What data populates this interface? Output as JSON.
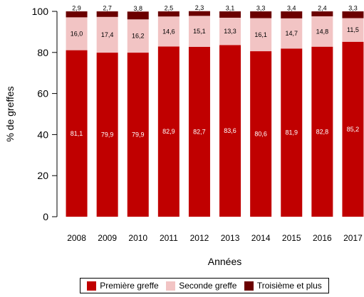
{
  "chart_data": {
    "type": "bar",
    "stacked": true,
    "title": "",
    "xlabel": "Années",
    "ylabel": "% de greffes",
    "ylim": [
      0,
      100
    ],
    "yticks": [
      "0",
      "20",
      "40",
      "60",
      "80",
      "100"
    ],
    "categories": [
      "2008",
      "2009",
      "2010",
      "2011",
      "2012",
      "2013",
      "2014",
      "2015",
      "2016",
      "2017"
    ],
    "series": [
      {
        "name": "Première greffe",
        "color": "#c00000",
        "values": [
          81.1,
          79.9,
          79.9,
          82.9,
          82.7,
          83.6,
          80.6,
          81.9,
          82.8,
          85.2
        ],
        "labels": [
          "81,1",
          "79,9",
          "79,9",
          "82,9",
          "82,7",
          "83,6",
          "80,6",
          "81,9",
          "82,8",
          "85,2"
        ]
      },
      {
        "name": "Seconde greffe",
        "color": "#f2c4c4",
        "values": [
          16.0,
          17.4,
          16.2,
          14.6,
          15.1,
          13.3,
          16.1,
          14.7,
          14.8,
          11.5
        ],
        "labels": [
          "16,0",
          "17,4",
          "16,2",
          "14,6",
          "15,1",
          "13,3",
          "16,1",
          "14,7",
          "14,8",
          "11,5"
        ]
      },
      {
        "name": "Troisième et plus",
        "color": "#6b0000",
        "values": [
          2.9,
          2.7,
          3.8,
          2.5,
          2.3,
          3.1,
          3.3,
          3.4,
          2.4,
          3.3
        ],
        "labels": [
          "2,9",
          "2,7",
          "3,8",
          "2,5",
          "2,3",
          "3,1",
          "3,3",
          "3,4",
          "2,4",
          "3,3"
        ]
      }
    ],
    "legend": "bottom",
    "grid": false
  }
}
